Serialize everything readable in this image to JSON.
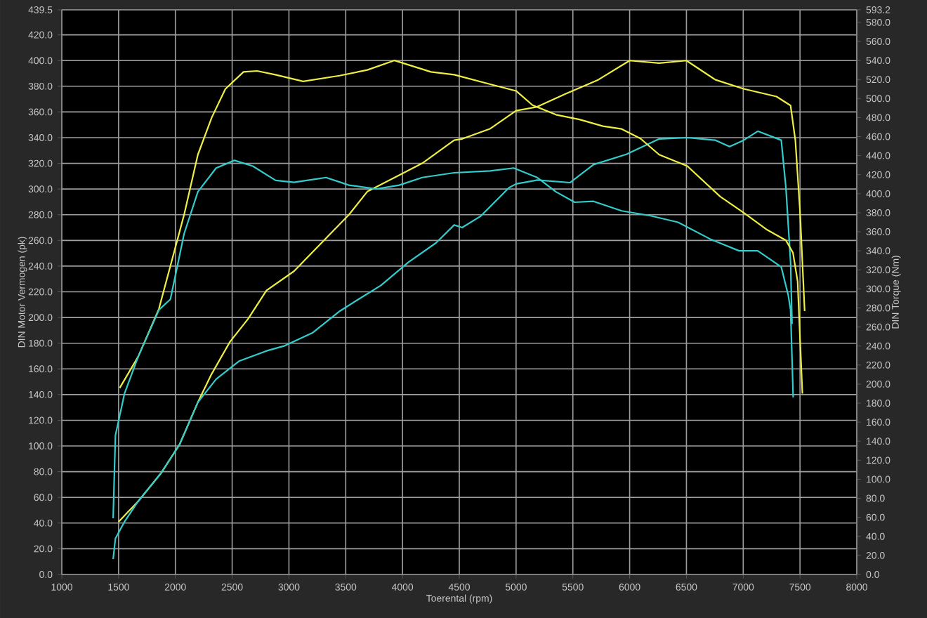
{
  "chart_data": {
    "type": "line",
    "xlabel": "Toerental (rpm)",
    "ylabel": "DIN Motor Vermogen (pk)",
    "y2label": "DIN Torque (Nm)",
    "xlim": [
      1000,
      8000
    ],
    "xticks": [
      1000,
      1500,
      2000,
      2500,
      3000,
      3500,
      4000,
      4500,
      5000,
      5500,
      6000,
      6500,
      7000,
      7500,
      8000
    ],
    "ylim": [
      0,
      439.5
    ],
    "yticks": [
      {
        "value": 0,
        "label": "0.0"
      },
      {
        "value": 20,
        "label": "20.0"
      },
      {
        "value": 40,
        "label": "40.0"
      },
      {
        "value": 60,
        "label": "60.0"
      },
      {
        "value": 80,
        "label": "80.0"
      },
      {
        "value": 100,
        "label": "100.0"
      },
      {
        "value": 120,
        "label": "120.0"
      },
      {
        "value": 140,
        "label": "140.0"
      },
      {
        "value": 160,
        "label": "160.0"
      },
      {
        "value": 180,
        "label": "180.0"
      },
      {
        "value": 200,
        "label": "200.0"
      },
      {
        "value": 220,
        "label": "220.0"
      },
      {
        "value": 240,
        "label": "240.0"
      },
      {
        "value": 260,
        "label": "260.0"
      },
      {
        "value": 280,
        "label": "280.0"
      },
      {
        "value": 300,
        "label": "300.0"
      },
      {
        "value": 320,
        "label": "320.0"
      },
      {
        "value": 340,
        "label": "340.0"
      },
      {
        "value": 360,
        "label": "360.0"
      },
      {
        "value": 380,
        "label": "380.0"
      },
      {
        "value": 400,
        "label": "400.0"
      },
      {
        "value": 420,
        "label": "420.0"
      },
      439.5
    ],
    "y2lim": [
      0,
      593.2
    ],
    "y2ticks": [
      {
        "value": 0,
        "label": "0.0"
      },
      {
        "value": 20,
        "label": "20.0"
      },
      {
        "value": 40,
        "label": "40.0"
      },
      {
        "value": 60,
        "label": "60.0"
      },
      {
        "value": 80,
        "label": "80.0"
      },
      {
        "value": 100,
        "label": "100.0"
      },
      {
        "value": 120,
        "label": "120.0"
      },
      {
        "value": 140,
        "label": "140.0"
      },
      {
        "value": 160,
        "label": "160.0"
      },
      {
        "value": 180,
        "label": "180.0"
      },
      {
        "value": 200,
        "label": "200.0"
      },
      {
        "value": 220,
        "label": "220.0"
      },
      {
        "value": 240,
        "label": "240.0"
      },
      {
        "value": 260,
        "label": "260.0"
      },
      {
        "value": 280,
        "label": "280.0"
      },
      {
        "value": 300,
        "label": "300.0"
      },
      {
        "value": 320,
        "label": "320.0"
      },
      {
        "value": 340,
        "label": "340.0"
      },
      {
        "value": 360,
        "label": "360.0"
      },
      {
        "value": 380,
        "label": "380.0"
      },
      {
        "value": 400,
        "label": "400.0"
      },
      {
        "value": 420,
        "label": "420.0"
      },
      {
        "value": 440,
        "label": "440.0"
      },
      {
        "value": 460,
        "label": "460.0"
      },
      {
        "value": 480,
        "label": "480.0"
      },
      {
        "value": 500,
        "label": "500.0"
      },
      {
        "value": 520,
        "label": "520.0"
      },
      {
        "value": 540,
        "label": "540.0"
      },
      {
        "value": 560,
        "label": "560.0"
      },
      {
        "value": 580,
        "label": "580.0"
      },
      593.2
    ],
    "grid": true,
    "marker": "none",
    "line_style": "solid",
    "series": [
      {
        "color": "#eeee44",
        "x": [
          1500,
          1673,
          1875,
          2036,
          2198,
          2319,
          2480,
          2641,
          2802,
          3044,
          3286,
          3528,
          3690,
          3931,
          4173,
          4455,
          4525,
          4773,
          5000,
          5186,
          5434,
          5723,
          6000,
          6260,
          6500,
          6756,
          7004,
          7293,
          7417,
          7459,
          7500,
          7541
        ],
        "values": [
          41,
          57,
          79,
          101,
          134,
          156,
          181,
          199,
          221,
          236,
          258,
          280,
          298,
          309,
          320,
          338,
          339,
          347,
          361,
          364,
          374,
          385,
          400,
          398,
          400,
          385,
          378,
          372,
          365,
          338,
          283,
          205
        ]
      },
      {
        "color": "#33cccc",
        "x": [
          1452,
          1472,
          1552,
          1673,
          1875,
          2036,
          2198,
          2359,
          2560,
          2802,
          2963,
          3206,
          3448,
          3609,
          3810,
          4052,
          4294,
          4455,
          4525,
          4690,
          4938,
          5000,
          5186,
          5475,
          5682,
          5971,
          6260,
          6508,
          6756,
          6880,
          7004,
          7128,
          7335,
          7376,
          7417,
          7430
        ],
        "values": [
          12,
          28,
          41,
          57,
          79,
          101,
          134,
          152,
          166,
          174,
          178,
          188,
          205,
          214,
          225,
          243,
          258,
          272,
          270,
          279,
          301,
          304,
          307,
          305,
          319,
          327,
          339,
          340,
          338,
          333,
          338,
          345,
          338,
          301,
          243,
          195
        ]
      },
      {
        "color": "#eeee44",
        "axis": "y2",
        "x": [
          1510,
          1673,
          1855,
          2077,
          2198,
          2320,
          2440,
          2600,
          2720,
          2880,
          3125,
          3445,
          3690,
          3930,
          4090,
          4250,
          4455,
          4773,
          5000,
          5145,
          5351,
          5558,
          5764,
          5930,
          6095,
          6260,
          6508,
          6797,
          7004,
          7211,
          7376,
          7438,
          7479,
          7521
        ],
        "values": [
          196,
          229,
          279,
          378,
          441,
          480,
          510,
          528,
          529,
          525,
          518,
          524,
          530,
          540,
          534,
          528,
          525,
          515,
          508,
          493,
          483,
          478,
          471,
          468,
          458,
          441,
          429,
          397,
          380,
          362,
          351,
          338,
          308,
          190
        ]
      },
      {
        "color": "#33cccc",
        "axis": "y2",
        "x": [
          1452,
          1472,
          1552,
          1673,
          1855,
          1956,
          2077,
          2198,
          2359,
          2520,
          2681,
          2883,
          3044,
          3327,
          3528,
          3770,
          3972,
          4173,
          4455,
          4773,
          4979,
          5186,
          5351,
          5516,
          5682,
          5930,
          6178,
          6426,
          6715,
          6963,
          7128,
          7335,
          7397,
          7417,
          7440
        ],
        "values": [
          59,
          146,
          190,
          229,
          278,
          289,
          358,
          402,
          427,
          435,
          429,
          414,
          412,
          417,
          409,
          405,
          409,
          417,
          422,
          424,
          427,
          417,
          402,
          391,
          392,
          382,
          377,
          370,
          352,
          340,
          340,
          323,
          293,
          278,
          186
        ]
      }
    ]
  }
}
